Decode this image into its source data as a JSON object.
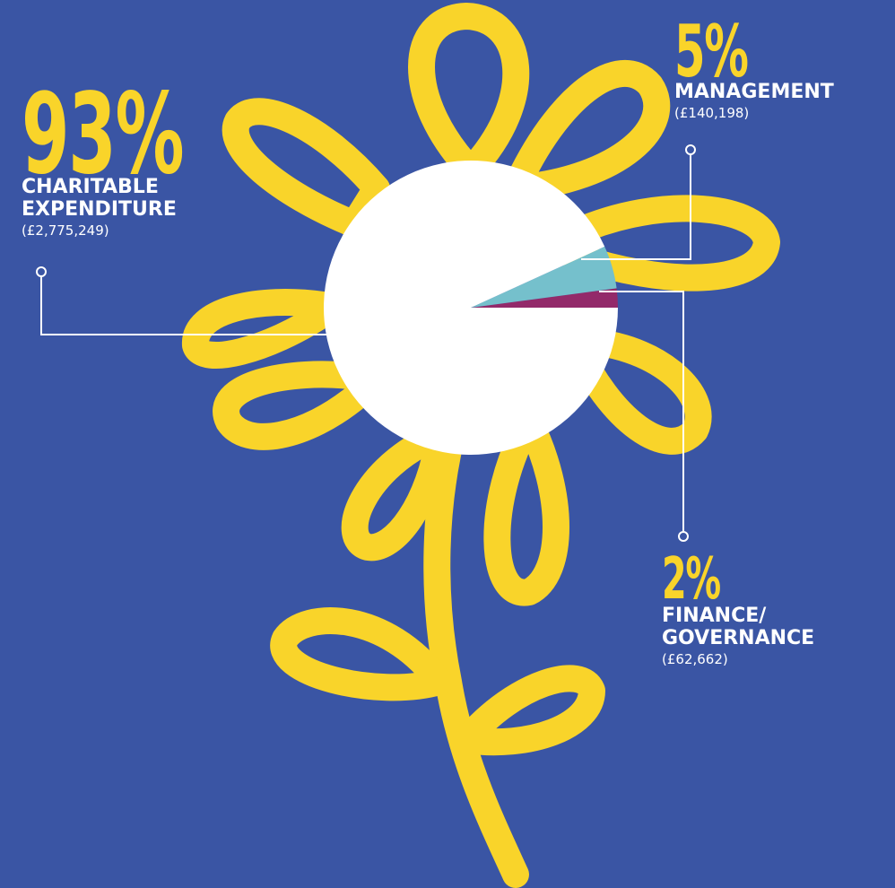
{
  "colors": {
    "background": "#3a55a4",
    "flower": "#f9d42a",
    "pie_main": "#ffffff",
    "pie_management": "#75c0cc",
    "pie_finance": "#932a6a",
    "leader": "#ffffff"
  },
  "callouts": {
    "charitable": {
      "percent": "93%",
      "label": "CHARITABLE\nEXPENDITURE",
      "amount": "(£2,775,249)"
    },
    "management": {
      "percent": "5%",
      "label": "MANAGEMENT",
      "amount": "(£140,198)"
    },
    "finance": {
      "percent": "2%",
      "label": "FINANCE/\nGOVERNANCE",
      "amount": "(£62,662)"
    }
  },
  "chart_data": {
    "type": "pie",
    "categories": [
      "CHARITABLE EXPENDITURE",
      "MANAGEMENT",
      "FINANCE/GOVERNANCE"
    ],
    "values": [
      2775249,
      140198,
      62662
    ],
    "percent_labels": [
      "93%",
      "5%",
      "2%"
    ],
    "colors": [
      "#ffffff",
      "#75c0cc",
      "#932a6a"
    ]
  }
}
